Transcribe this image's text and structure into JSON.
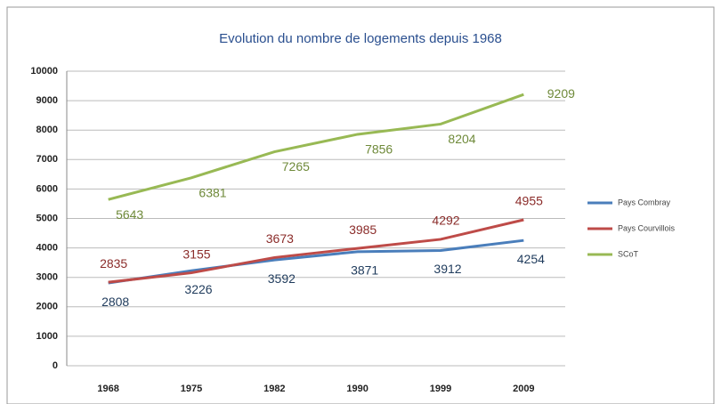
{
  "chart_data": {
    "type": "line",
    "title": "Evolution du nombre de logements depuis 1968",
    "categories": [
      "1968",
      "1975",
      "1982",
      "1990",
      "1999",
      "2009"
    ],
    "series": [
      {
        "name": "Pays Combray",
        "color": "#4a7ebb",
        "label_color": "#1f3b5c",
        "values": [
          2808,
          3226,
          3592,
          3871,
          3912,
          4254
        ]
      },
      {
        "name": "Pays Courvillois",
        "color": "#be4b48",
        "label_color": "#8b2c2a",
        "values": [
          2835,
          3155,
          3673,
          3985,
          4292,
          4955
        ]
      },
      {
        "name": "SCoT",
        "color": "#98b954",
        "label_color": "#6f8a3a",
        "values": [
          5643,
          6381,
          7265,
          7856,
          8204,
          9209
        ]
      }
    ],
    "ylim": [
      0,
      10000
    ],
    "yticks": [
      0,
      1000,
      2000,
      3000,
      4000,
      5000,
      6000,
      7000,
      8000,
      9000,
      10000
    ],
    "grid": true,
    "legend": "right"
  }
}
